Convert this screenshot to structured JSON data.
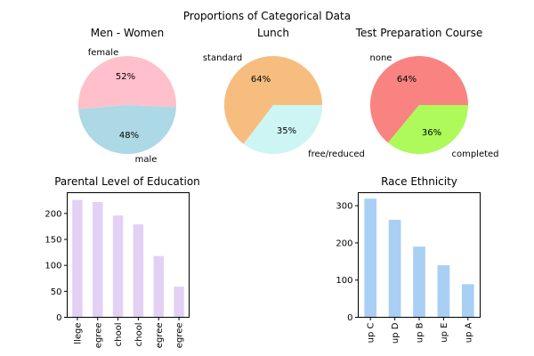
{
  "suptitle": "Proportions of Categorical Data",
  "chart_data": [
    {
      "type": "pie",
      "title": "Men - Women",
      "categories": [
        "female",
        "male"
      ],
      "values": [
        52,
        48
      ],
      "value_labels": [
        "52%",
        "48%"
      ],
      "colors": [
        "#ffc0cb",
        "#add8e6"
      ]
    },
    {
      "type": "pie",
      "title": "Lunch",
      "categories": [
        "standard",
        "free/reduced"
      ],
      "values": [
        64,
        35
      ],
      "value_labels": [
        "64%",
        "35%"
      ],
      "colors": [
        "#f7bd7f",
        "#cdf5f3"
      ]
    },
    {
      "type": "pie",
      "title": "Test Preparation Course",
      "categories": [
        "none",
        "completed"
      ],
      "values": [
        64,
        36
      ],
      "value_labels": [
        "64%",
        "36%"
      ],
      "colors": [
        "#f88380",
        "#adfa5a"
      ]
    },
    {
      "type": "bar",
      "title": "Parental Level of Education",
      "categories": [
        "llege",
        "egree",
        "chool",
        "chool",
        "egree",
        "egree"
      ],
      "values": [
        226,
        222,
        196,
        179,
        118,
        59
      ],
      "ylim": [
        0,
        240
      ],
      "yticks": [
        0,
        50,
        100,
        150,
        200
      ],
      "color": "#e3d0f5"
    },
    {
      "type": "bar",
      "title": "Race Ethnicity",
      "categories": [
        "up C",
        "up D",
        "up B",
        "up E",
        "up A"
      ],
      "values": [
        319,
        262,
        190,
        140,
        89
      ],
      "ylim": [
        0,
        335
      ],
      "yticks": [
        0,
        100,
        200,
        300
      ],
      "color": "#aacff4"
    }
  ]
}
